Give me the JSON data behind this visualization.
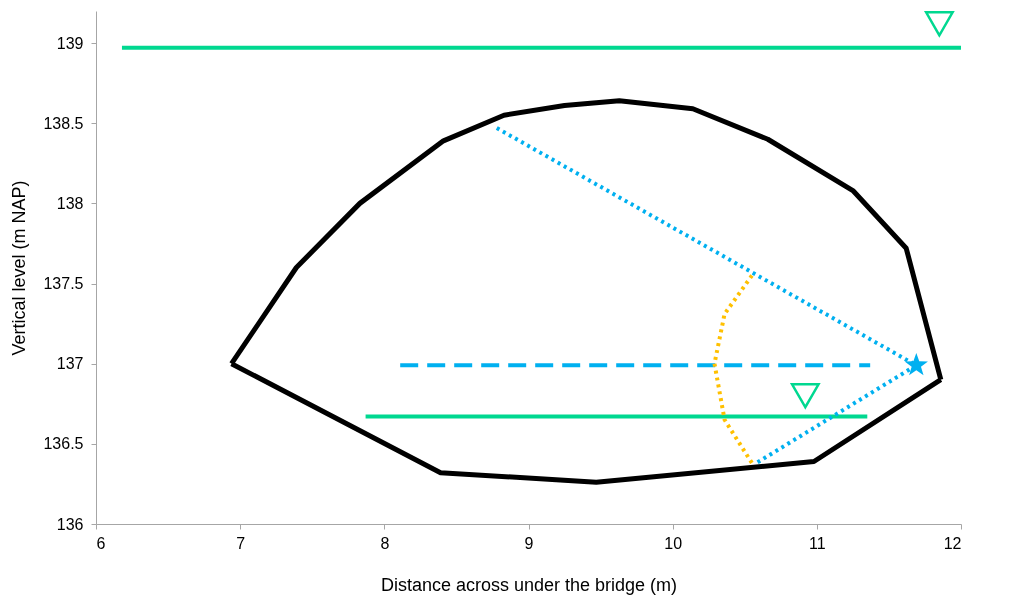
{
  "chart_data": {
    "type": "line",
    "xlabel": "Distance across under the bridge (m)",
    "ylabel": "Vertical level (m NAP)",
    "xlim": [
      6,
      12
    ],
    "xticks": [
      6,
      7,
      8,
      9,
      10,
      11,
      12
    ],
    "ylim": [
      136,
      139.2
    ],
    "yticks": [
      136,
      136.5,
      137,
      137.5,
      138,
      138.5,
      139
    ],
    "grid": false,
    "series": [
      {
        "type": "line",
        "color": "#000000",
        "line_style": "solid",
        "x": [
          6.94,
          7.39,
          7.83,
          8.41,
          8.83,
          9.25,
          9.63,
          10.14,
          10.66,
          11.25,
          11.62,
          11.86
        ],
        "values": [
          137.0,
          137.6,
          138.0,
          138.39,
          138.55,
          138.61,
          138.64,
          138.59,
          138.4,
          138.08,
          137.72,
          136.9
        ]
      },
      {
        "type": "line",
        "color": "#000000",
        "line_style": "solid",
        "x": [
          6.94,
          8.39,
          9.47,
          10.98,
          11.86
        ],
        "values": [
          137.0,
          136.32,
          136.26,
          136.39,
          136.9
        ]
      },
      {
        "type": "line",
        "color": "#00d890",
        "line_style": "solid",
        "x": [
          6.18,
          12.0
        ],
        "values": [
          138.97,
          138.97
        ]
      },
      {
        "type": "line",
        "color": "#00d890",
        "line_style": "solid",
        "x": [
          7.87,
          11.35
        ],
        "values": [
          136.67,
          136.67
        ]
      },
      {
        "type": "line",
        "color": "#00b0f0",
        "line_style": "dashed",
        "x": [
          8.11,
          11.37
        ],
        "values": [
          136.99,
          136.99
        ]
      },
      {
        "type": "line",
        "color": "#00b0f0",
        "line_style": "dotted",
        "x": [
          8.78,
          11.69,
          10.58
        ],
        "values": [
          138.47,
          136.99,
          136.38
        ]
      },
      {
        "type": "line",
        "color": "#ffc000",
        "line_style": "dotted",
        "x": [
          10.55,
          10.36,
          10.29,
          10.36,
          10.55
        ],
        "values": [
          137.55,
          137.31,
          137.0,
          136.65,
          136.38
        ]
      },
      {
        "type": "scatter",
        "color": "#00d890",
        "marker": "triangle",
        "x": [
          11.85,
          10.92
        ],
        "values": [
          139.12,
          136.8
        ]
      },
      {
        "type": "scatter",
        "color": "#00b0f0",
        "marker": "star",
        "x": [
          11.69
        ],
        "values": [
          136.99
        ]
      }
    ]
  }
}
